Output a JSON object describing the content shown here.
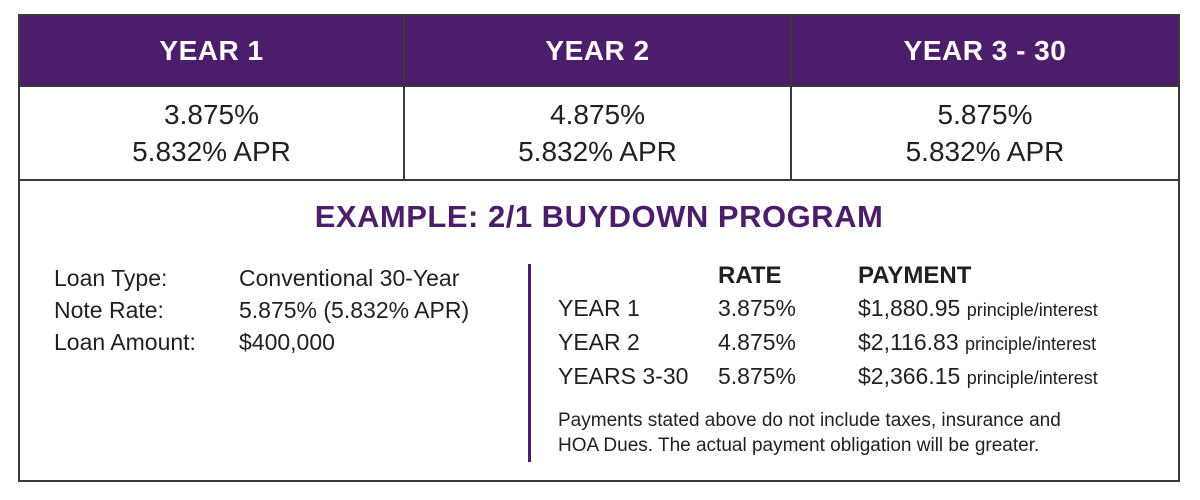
{
  "header": {
    "columns": [
      "YEAR 1",
      "YEAR 2",
      "YEAR 3 - 30"
    ]
  },
  "rates": [
    {
      "rate": "3.875%",
      "apr": "5.832% APR"
    },
    {
      "rate": "4.875%",
      "apr": "5.832% APR"
    },
    {
      "rate": "5.875%",
      "apr": "5.832% APR"
    }
  ],
  "example": {
    "title": "EXAMPLE: 2/1 BUYDOWN PROGRAM",
    "loan_details": [
      {
        "label": "Loan Type:",
        "value": "Conventional 30-Year"
      },
      {
        "label": "Note Rate:",
        "value": "5.875% (5.832% APR)"
      },
      {
        "label": "Loan Amount:",
        "value": "$400,000"
      }
    ],
    "payment_table": {
      "headers": {
        "rate": "RATE",
        "payment": "PAYMENT"
      },
      "rows": [
        {
          "year": "YEAR 1",
          "rate": "3.875%",
          "payment": "$1,880.95",
          "note": "principle/interest"
        },
        {
          "year": "YEAR 2",
          "rate": "4.875%",
          "payment": "$2,116.83",
          "note": "principle/interest"
        },
        {
          "year": "YEARS 3-30",
          "rate": "5.875%",
          "payment": "$2,366.15",
          "note": "principle/interest"
        }
      ]
    },
    "disclaimer_lines": [
      "Payments stated above do not include taxes, insurance and",
      "HOA Dues. The actual payment obligation will be greater."
    ]
  },
  "colors": {
    "header_bg": "#4c1d6b",
    "title_color": "#4c1d6b",
    "divider": "#4c1d6b",
    "border": "#3a3a3a"
  }
}
